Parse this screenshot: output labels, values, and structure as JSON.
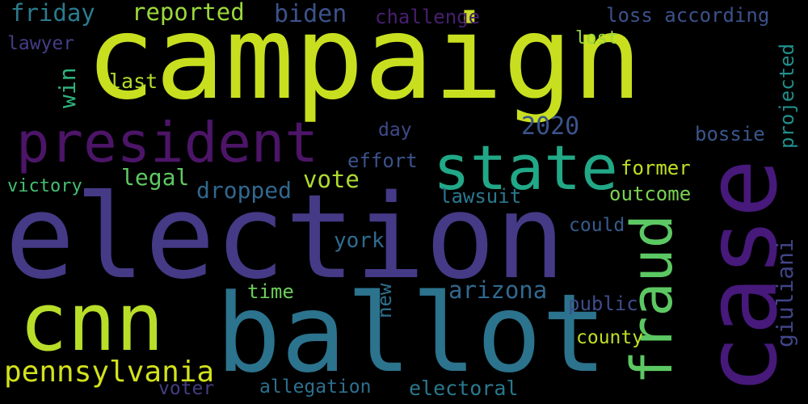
{
  "words": [
    {
      "id": "campaign",
      "text": "campaign",
      "color": "#c8df20",
      "orientation": "horizontal"
    },
    {
      "id": "election",
      "text": "election",
      "color": "#453a86",
      "orientation": "horizontal"
    },
    {
      "id": "case",
      "text": "case",
      "color": "#46197a",
      "orientation": "vertical"
    },
    {
      "id": "ballot",
      "text": "ballot",
      "color": "#2c738d",
      "orientation": "horizontal"
    },
    {
      "id": "cnn",
      "text": "cnn",
      "color": "#b8de29",
      "orientation": "horizontal"
    },
    {
      "id": "president",
      "text": "president",
      "color": "#4c1568",
      "orientation": "horizontal"
    },
    {
      "id": "state",
      "text": "state",
      "color": "#21a887",
      "orientation": "horizontal"
    },
    {
      "id": "fraud",
      "text": "fraud",
      "color": "#5cc863",
      "orientation": "vertical"
    },
    {
      "id": "pennsylvania",
      "text": "pennsylvania",
      "color": "#d2e21b",
      "orientation": "horizontal"
    },
    {
      "id": "friday",
      "text": "friday",
      "color": "#2b7b8e",
      "orientation": "horizontal"
    },
    {
      "id": "reported",
      "text": "reported",
      "color": "#9cd93b",
      "orientation": "horizontal"
    },
    {
      "id": "biden",
      "text": "biden",
      "color": "#3b528b",
      "orientation": "horizontal"
    },
    {
      "id": "challenge",
      "text": "challenge",
      "color": "#481f70",
      "orientation": "horizontal"
    },
    {
      "id": "loss-according",
      "text": "loss according",
      "color": "#3b528b",
      "orientation": "horizontal"
    },
    {
      "id": "lawyer",
      "text": "lawyer",
      "color": "#433e85",
      "orientation": "horizontal"
    },
    {
      "id": "win",
      "text": "win",
      "color": "#2fb47c",
      "orientation": "vertical"
    },
    {
      "id": "last",
      "text": "last",
      "color": "#b5de2b",
      "orientation": "horizontal"
    },
    {
      "id": "lost",
      "text": "lost",
      "color": "#98d83e",
      "orientation": "horizontal"
    },
    {
      "id": "2020",
      "text": "2020",
      "color": "#3a548c",
      "orientation": "horizontal"
    },
    {
      "id": "day",
      "text": "day",
      "color": "#3e4989",
      "orientation": "horizontal"
    },
    {
      "id": "bossie",
      "text": "bossie",
      "color": "#39568c",
      "orientation": "horizontal"
    },
    {
      "id": "projected",
      "text": "projected",
      "color": "#218f8d",
      "orientation": "vertical"
    },
    {
      "id": "effort",
      "text": "effort",
      "color": "#3b528b",
      "orientation": "horizontal"
    },
    {
      "id": "legal",
      "text": "legal",
      "color": "#5ec962",
      "orientation": "horizontal"
    },
    {
      "id": "vote",
      "text": "vote",
      "color": "#addc30",
      "orientation": "horizontal"
    },
    {
      "id": "former",
      "text": "former",
      "color": "#c2df23",
      "orientation": "horizontal"
    },
    {
      "id": "dropped",
      "text": "dropped",
      "color": "#31688e",
      "orientation": "horizontal"
    },
    {
      "id": "victory",
      "text": "victory",
      "color": "#44bf70",
      "orientation": "horizontal"
    },
    {
      "id": "lawsuit",
      "text": "lawsuit",
      "color": "#2a788e",
      "orientation": "horizontal"
    },
    {
      "id": "outcome",
      "text": "outcome",
      "color": "#7ad151",
      "orientation": "horizontal"
    },
    {
      "id": "could",
      "text": "could",
      "color": "#375b8d",
      "orientation": "horizontal"
    },
    {
      "id": "giuliani",
      "text": "giuliani",
      "color": "#414487",
      "orientation": "vertical"
    },
    {
      "id": "york",
      "text": "york",
      "color": "#2f6c8e",
      "orientation": "horizontal"
    },
    {
      "id": "arizona",
      "text": "arizona",
      "color": "#31688e",
      "orientation": "horizontal"
    },
    {
      "id": "time",
      "text": "time",
      "color": "#6ccd5a",
      "orientation": "horizontal"
    },
    {
      "id": "new",
      "text": "new",
      "color": "#2d708e",
      "orientation": "vertical"
    },
    {
      "id": "public",
      "text": "public",
      "color": "#3e4c8a",
      "orientation": "horizontal"
    },
    {
      "id": "county",
      "text": "county",
      "color": "#c0df25",
      "orientation": "horizontal"
    },
    {
      "id": "voter",
      "text": "voter",
      "color": "#433d84",
      "orientation": "horizontal"
    },
    {
      "id": "allegation",
      "text": "allegation",
      "color": "#2d708e",
      "orientation": "horizontal"
    },
    {
      "id": "electoral",
      "text": "electoral",
      "color": "#2a788e",
      "orientation": "horizontal"
    }
  ]
}
